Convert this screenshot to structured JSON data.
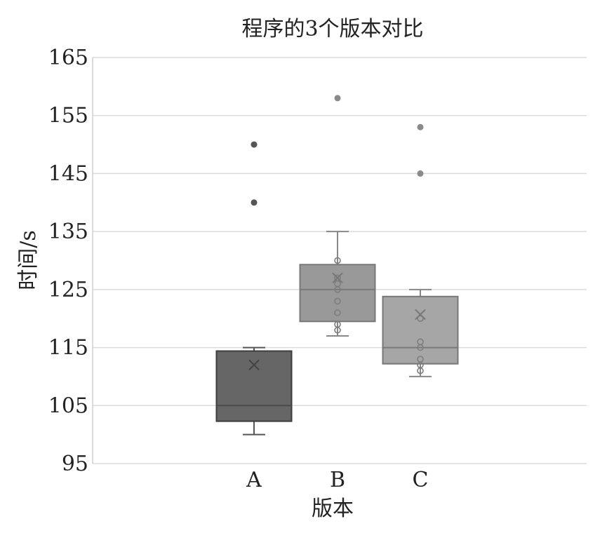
{
  "chart_data": {
    "type": "box",
    "title": "程序的3个版本对比",
    "xlabel": "版本",
    "ylabel": "时间/s",
    "ylim": [
      95,
      165
    ],
    "yticks": [
      95,
      105,
      115,
      125,
      135,
      145,
      155,
      165
    ],
    "grid": true,
    "categories": [
      "A",
      "B",
      "C"
    ],
    "series": [
      {
        "category": "A",
        "color": "#666666",
        "whisker_low": 100,
        "q1": 102.3,
        "median": 105,
        "q3": 114.4,
        "whisker_high": 115,
        "mean": 112,
        "points": [],
        "outliers": [
          140,
          150
        ]
      },
      {
        "category": "B",
        "color": "#999999",
        "whisker_low": 117,
        "q1": 119.5,
        "median": 125,
        "q3": 129.3,
        "whisker_high": 135,
        "mean": 127,
        "points": [
          118,
          119,
          121,
          123,
          125,
          126,
          127,
          130
        ],
        "outliers": [
          158
        ]
      },
      {
        "category": "C",
        "color": "#a6a6a6",
        "whisker_low": 110,
        "q1": 112.2,
        "median": 115,
        "q3": 123.8,
        "whisker_high": 125,
        "mean": 120.7,
        "points": [
          111,
          112,
          113,
          115,
          116,
          120
        ],
        "outliers": [
          145,
          153
        ]
      }
    ]
  }
}
